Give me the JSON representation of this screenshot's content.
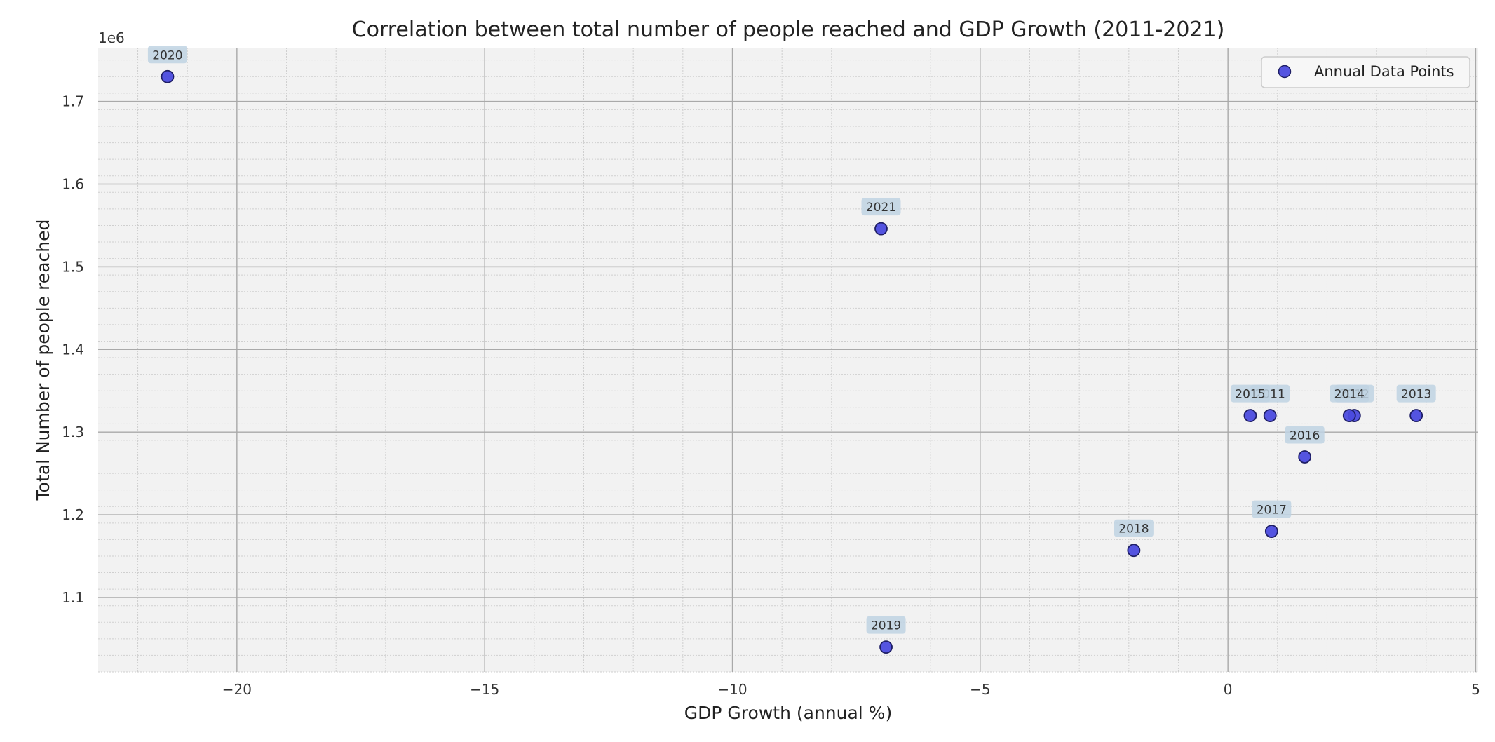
{
  "colors": {
    "page_background": "#ffffff",
    "plot_background": "#f2f2f2",
    "major_grid": "#a9a9a9",
    "minor_grid": "#cfcfcf",
    "marker_fill": "#4b4bde",
    "marker_edge": "#1f1f66",
    "annotation_box": "#bfd3e3",
    "legend_edge": "#cccccc"
  },
  "chart_data": {
    "type": "scatter",
    "title": "Correlation between total number of people reached and GDP Growth (2011-2021)",
    "xlabel": "GDP Growth (annual %)",
    "ylabel": "Total Number of people reached",
    "y_offset_text": "1e6",
    "xlim": [
      -22.8,
      5.05
    ],
    "ylim": [
      1010000,
      1765000
    ],
    "x_ticks": [
      -20,
      -15,
      -10,
      -5,
      0,
      5
    ],
    "x_tick_labels": [
      "−20",
      "−15",
      "−10",
      "−5",
      "0",
      "5"
    ],
    "y_ticks": [
      1100000,
      1200000,
      1300000,
      1400000,
      1500000,
      1600000,
      1700000
    ],
    "y_tick_labels": [
      "1.1",
      "1.2",
      "1.3",
      "1.4",
      "1.5",
      "1.6",
      "1.7"
    ],
    "grid": true,
    "minor_grid": true,
    "legend": {
      "entries": [
        "Annual Data Points"
      ],
      "position": "top-right"
    },
    "series": [
      {
        "name": "Annual Data Points",
        "points": [
          {
            "label": "2011",
            "x": 0.85,
            "y": 1320000
          },
          {
            "label": "2012",
            "x": 2.55,
            "y": 1320000
          },
          {
            "label": "2013",
            "x": 3.8,
            "y": 1320000
          },
          {
            "label": "2014",
            "x": 2.45,
            "y": 1320000
          },
          {
            "label": "2015",
            "x": 0.45,
            "y": 1320000
          },
          {
            "label": "2016",
            "x": 1.55,
            "y": 1270000
          },
          {
            "label": "2017",
            "x": 0.88,
            "y": 1180000
          },
          {
            "label": "2018",
            "x": -1.9,
            "y": 1157000
          },
          {
            "label": "2019",
            "x": -6.9,
            "y": 1040000
          },
          {
            "label": "2020",
            "x": -21.4,
            "y": 1730000
          },
          {
            "label": "2021",
            "x": -7.0,
            "y": 1546000
          }
        ]
      }
    ]
  }
}
